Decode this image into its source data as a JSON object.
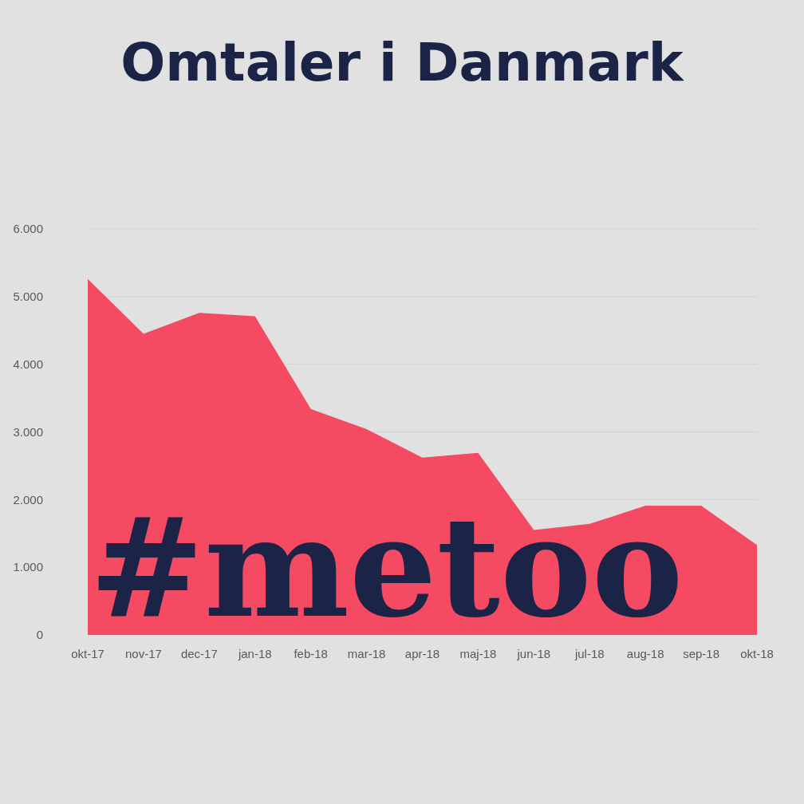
{
  "chart_data": {
    "type": "area",
    "title": "Omtaler i Danmark",
    "annotations": [
      "#metoo"
    ],
    "categories": [
      "okt-17",
      "nov-17",
      "dec-17",
      "jan-18",
      "feb-18",
      "mar-18",
      "apr-18",
      "maj-18",
      "jun-18",
      "jul-18",
      "aug-18",
      "sep-18",
      "okt-18"
    ],
    "values": [
      5260,
      4450,
      4760,
      4710,
      3340,
      3040,
      2620,
      2690,
      1550,
      1640,
      1910,
      1910,
      1330
    ],
    "color": "#f44a62",
    "ylim": [
      0,
      6000
    ],
    "yticks": [
      0,
      {
        "value": 1000,
        "label": "1.000"
      },
      {
        "value": 2000,
        "label": "2.000"
      },
      {
        "value": 3000,
        "label": "3.000"
      },
      {
        "value": 4000,
        "label": "4.000"
      },
      {
        "value": 5000,
        "label": "5.000"
      },
      {
        "value": 6000,
        "label": "6.000"
      }
    ],
    "grid": "y"
  }
}
